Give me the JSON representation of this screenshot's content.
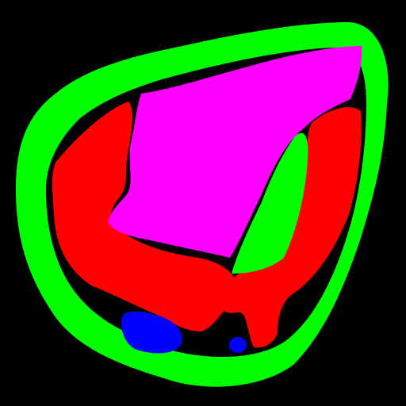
{
  "background_color": "#000000",
  "regions": [
    {
      "name": "outer-ring-region",
      "color": "#00ff00"
    },
    {
      "name": "red-band-region",
      "color": "#ff0000"
    },
    {
      "name": "magenta-region",
      "color": "#ff00ff"
    },
    {
      "name": "inner-green-region",
      "color": "#00ff00"
    },
    {
      "name": "blue-blob-large",
      "color": "#0000ff"
    },
    {
      "name": "blue-blob-small",
      "color": "#0000ff"
    }
  ]
}
